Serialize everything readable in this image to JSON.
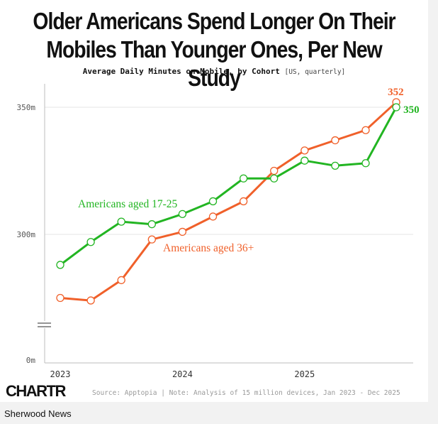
{
  "page": {
    "title_line1": "Older Americans Spend Longer On Their",
    "title_line2": "Mobiles Than Younger Ones, Per New Study",
    "subtitle": "Average Daily Minutes on Mobile, by Cohort",
    "subtitle_note": "[US, quarterly]",
    "logo": "CHARTR",
    "source": "Source: Apptopia | Note: Analysis of 15 million devices, Jan 2023 - Dec 2025",
    "brand": "Sherwood News"
  },
  "chart_data": {
    "type": "line",
    "title": "Older Americans Spend Longer On Their Mobiles Than Younger Ones, Per New Study",
    "subtitle": "Average Daily Minutes on Mobile, by Cohort [US, quarterly]",
    "xlabel": "",
    "ylabel": "",
    "x": [
      "2023 Q1",
      "2023 Q2",
      "2023 Q3",
      "2023 Q4",
      "2024 Q1",
      "2024 Q2",
      "2024 Q3",
      "2024 Q4",
      "2025 Q1",
      "2025 Q2",
      "2025 Q3",
      "2025 Q4"
    ],
    "x_ticks": [
      "2023",
      "2024",
      "2025"
    ],
    "y_ticks": [
      "0m",
      "300m",
      "350m"
    ],
    "y_axis_break": true,
    "y_visible_range": [
      300,
      350
    ],
    "grid": true,
    "series": [
      {
        "name": "Americans aged 17-25",
        "color": "#22b522",
        "values": [
          288,
          297,
          305,
          304,
          308,
          313,
          322,
          322,
          329,
          327,
          328,
          350
        ],
        "end_label": "350"
      },
      {
        "name": "Americans aged 36+",
        "color": "#f0602a",
        "values": [
          275,
          274,
          282,
          298,
          301,
          307,
          313,
          325,
          333,
          337,
          341,
          352
        ],
        "end_label": "352"
      }
    ]
  }
}
